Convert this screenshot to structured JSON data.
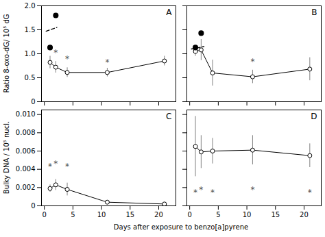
{
  "chart_data": [
    {
      "type": "line",
      "title": "A",
      "ylabel": "Ratio 8-oxo-dG/ 10⁵ dG",
      "series": [
        {
          "x": [
            1,
            2,
            4,
            11,
            21
          ],
          "values": [
            0.82,
            0.72,
            0.61,
            0.61,
            0.85
          ],
          "errors": [
            0.13,
            0.12,
            0.1,
            0.09,
            0.1
          ],
          "color": "#000000",
          "marker": "open_circle",
          "line_style": "solid"
        },
        {
          "x": [
            1,
            2
          ],
          "values": [
            1.13,
            1.8
          ],
          "type": "scatter",
          "color": "#000000",
          "marker": "filled_circle"
        },
        {
          "x": [
            0.3,
            2.2
          ],
          "values": [
            1.47,
            1.55
          ],
          "color": "#000000",
          "marker": "none",
          "line_style": "dashed"
        }
      ],
      "annotations": [
        {
          "text": "*",
          "x": 2,
          "y": 0.97
        },
        {
          "text": "*",
          "x": 4,
          "y": 0.84
        },
        {
          "text": "*",
          "x": 11,
          "y": 0.77
        }
      ],
      "xlim": [
        -0.5,
        23
      ],
      "xticks": [
        0,
        5,
        10,
        15,
        20
      ],
      "ylim": [
        0,
        2.0
      ],
      "yticks": [
        0,
        0.5,
        {
          "value": 1.0,
          "label": "1.0"
        },
        1.5,
        {
          "value": 2.0,
          "label": "2.0"
        }
      ],
      "tick_labels": "y"
    },
    {
      "type": "line",
      "title": "B",
      "series": [
        {
          "x": [
            1,
            2,
            4,
            11,
            21
          ],
          "values": [
            1.05,
            1.08,
            0.6,
            0.52,
            0.68
          ],
          "errors": [
            0.1,
            0.22,
            0.27,
            0.14,
            0.24
          ],
          "color": "#000000",
          "marker": "open_circle",
          "line_style": "solid"
        },
        {
          "x": [
            1,
            2
          ],
          "values": [
            1.13,
            1.43
          ],
          "type": "scatter",
          "color": "#000000",
          "marker": "filled_circle"
        },
        {
          "x": [
            0.3,
            2.5
          ],
          "values": [
            1.1,
            1.15
          ],
          "color": "#000000",
          "marker": "none",
          "line_style": "dashed"
        }
      ],
      "annotations": [
        {
          "text": "*",
          "x": 11,
          "y": 0.78
        }
      ],
      "xlim": [
        -0.5,
        23
      ],
      "xticks": [
        0,
        5,
        10,
        15,
        20
      ],
      "ylim": [
        0,
        2.0
      ],
      "yticks": [
        0,
        0.5,
        {
          "value": 1.0,
          "label": "1.0"
        },
        1.5,
        {
          "value": 2.0,
          "label": "2.0"
        }
      ],
      "tick_labels": false
    },
    {
      "type": "line",
      "title": "C",
      "ylabel": "Bulky DNA / 10⁵ nucl.",
      "xlabel": "Days after exposure to benzo[a]pyrene",
      "series": [
        {
          "x": [
            1,
            2,
            4,
            11,
            21
          ],
          "values": [
            0.0019,
            0.0023,
            0.0018,
            0.0004,
            0.0002
          ],
          "errors": [
            0.0004,
            0.0006,
            0.0007,
            0.0002,
            0.0001
          ],
          "color": "#000000",
          "marker": "open_circle",
          "line_style": "solid"
        }
      ],
      "annotations": [
        {
          "text": "*",
          "x": 1,
          "y": 0.004
        },
        {
          "text": "*",
          "x": 2,
          "y": 0.0043
        },
        {
          "text": "*",
          "x": 4,
          "y": 0.004
        }
      ],
      "xlim": [
        -0.5,
        23
      ],
      "xticks": [
        0,
        5,
        10,
        15,
        20
      ],
      "ylim": [
        0,
        0.0105
      ],
      "yticks": [
        0,
        0.002,
        0.004,
        0.006,
        0.008,
        {
          "value": 0.01,
          "label": "0.010"
        }
      ]
    },
    {
      "type": "line",
      "title": "D",
      "series": [
        {
          "x": [
            1,
            2,
            4,
            11,
            21
          ],
          "values": [
            0.0065,
            0.0059,
            0.006,
            0.0061,
            0.0055
          ],
          "errors": [
            0.0033,
            0.0018,
            0.0014,
            0.0016,
            0.0013
          ],
          "color": "#000000",
          "marker": "open_circle",
          "line_style": "solid"
        }
      ],
      "annotations": [
        {
          "text": "*",
          "x": 1,
          "y": 0.0012
        },
        {
          "text": "*",
          "x": 2,
          "y": 0.0015
        },
        {
          "text": "*",
          "x": 4,
          "y": 0.0012
        },
        {
          "text": "*",
          "x": 11,
          "y": 0.0015
        },
        {
          "text": "*",
          "x": 21,
          "y": 0.0012
        }
      ],
      "xlim": [
        -0.5,
        23
      ],
      "xticks": [
        0,
        5,
        10,
        15,
        20
      ],
      "ylim": [
        0,
        0.0105
      ],
      "yticks": [
        0,
        0.002,
        0.004,
        0.006,
        0.008,
        {
          "value": 0.01,
          "label": "0.010"
        }
      ],
      "tick_labels": "x"
    }
  ]
}
